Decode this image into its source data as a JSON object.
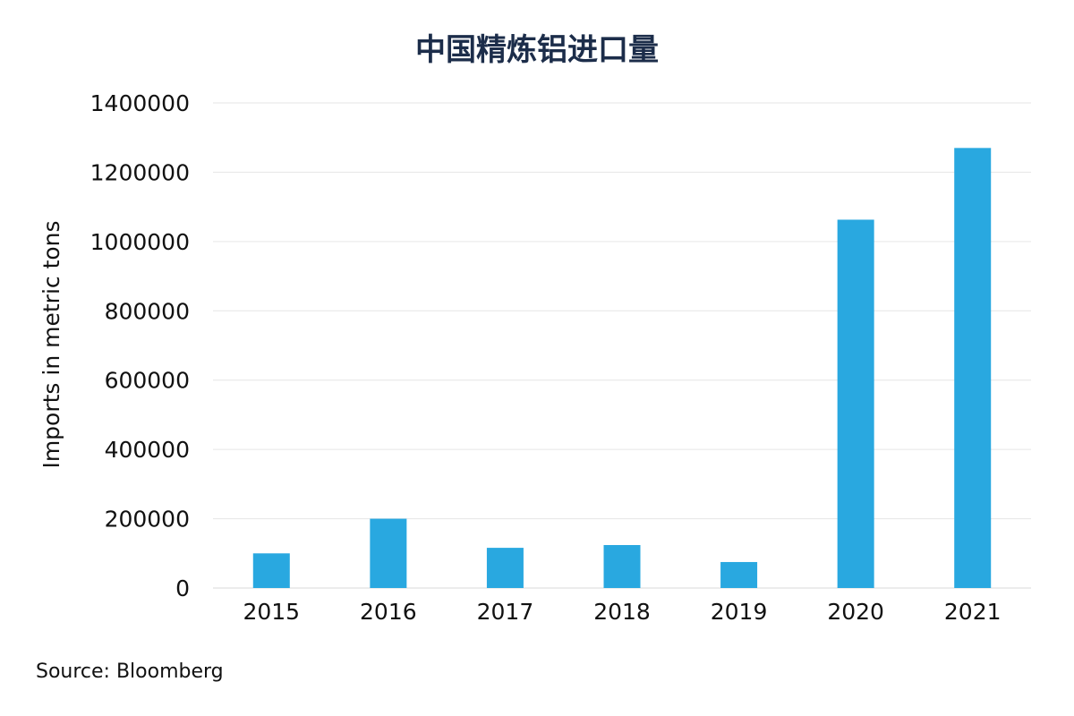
{
  "chart_data": {
    "type": "bar",
    "title": "中国精炼铝进口量",
    "xlabel": "",
    "ylabel": "Imports in metric tons",
    "categories": [
      "2015",
      "2016",
      "2017",
      "2018",
      "2019",
      "2020",
      "2021"
    ],
    "values": [
      100000,
      200000,
      116000,
      124000,
      75000,
      1063000,
      1270000
    ],
    "ylim": [
      0,
      1400000
    ],
    "yticks": [
      0,
      200000,
      400000,
      600000,
      800000,
      1000000,
      1200000,
      1400000
    ],
    "bar_color": "#29a8e0",
    "grid": true,
    "legend": "none"
  },
  "source": "Source: Bloomberg"
}
